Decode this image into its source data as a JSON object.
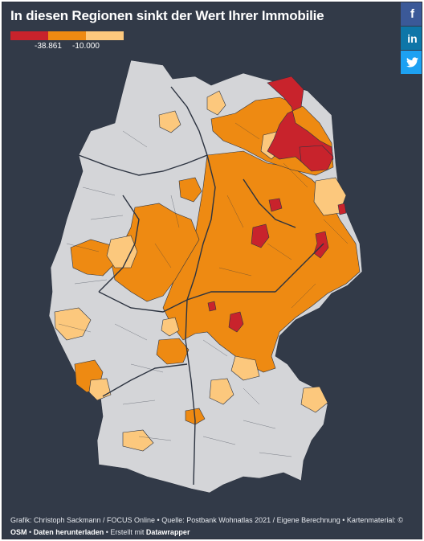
{
  "title": "In diesen Regionen sinkt der Wert Ihrer Immobilie",
  "legend": {
    "colors": [
      "#c8232c",
      "#ee8a12",
      "#fcc87d"
    ],
    "label_low": "-38.861",
    "label_mid": "-10.000"
  },
  "map_colors": {
    "neutral": "#d4d5d8",
    "strong": "#c8232c",
    "medium": "#ee8a12",
    "light": "#fcc87d",
    "border": "#2c3340"
  },
  "social": {
    "facebook": "f",
    "linkedin": "in",
    "twitter": "🐦"
  },
  "footer": {
    "credit": "Grafik: Christoph Sackmann / FOCUS Online • Quelle: Postbank Wohnatlas 2021 / Eigene Berechnung • Kartenmaterial: ©",
    "osm": "OSM",
    "sep1": "•",
    "download": "Daten herunterladen",
    "sep2": "• Erstellt mit",
    "datawrapper": "Datawrapper"
  }
}
